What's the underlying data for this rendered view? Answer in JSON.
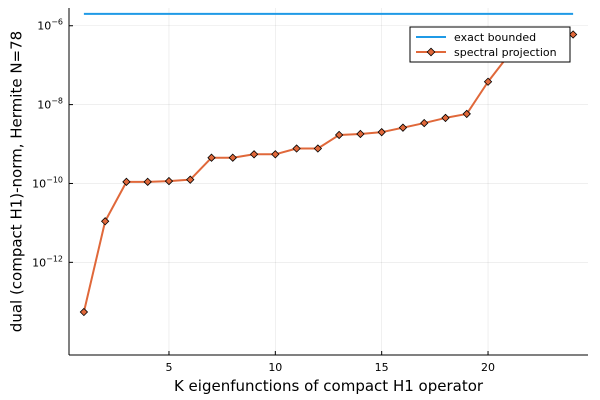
{
  "chart_data": {
    "type": "line",
    "title": "",
    "xlabel": "K eigenfunctions of compact H1 operator",
    "ylabel": "dual (compact H1)-norm, Hermite N=78",
    "xlim": [
      0.3,
      24.7
    ],
    "ylim_log10": [
      -14.35,
      -5.55
    ],
    "yscale": "log",
    "grid": true,
    "legend_position": "top-right",
    "x_ticks": [
      5,
      10,
      15,
      20
    ],
    "y_ticks": [
      {
        "exp": -6,
        "base": "10",
        "sup": "−6"
      },
      {
        "exp": -8,
        "base": "10",
        "sup": "−8"
      },
      {
        "exp": -10,
        "base": "10",
        "sup": "−10"
      },
      {
        "exp": -12,
        "base": "10",
        "sup": "−12"
      }
    ],
    "series": [
      {
        "name": "exact bounded",
        "color": "#1f9ae6",
        "marker": "none",
        "x": [
          1,
          24
        ],
        "y": [
          2e-06,
          2e-06
        ]
      },
      {
        "name": "spectral projection",
        "color": "#e0683a",
        "marker": "diamond",
        "x": [
          1,
          2,
          3,
          4,
          5,
          6,
          7,
          8,
          9,
          10,
          11,
          12,
          13,
          14,
          15,
          16,
          17,
          18,
          19,
          20,
          21,
          22,
          23,
          24
        ],
        "y": [
          5.5e-14,
          1.1e-11,
          1.1e-10,
          1.1e-10,
          1.15e-10,
          1.25e-10,
          4.5e-10,
          4.5e-10,
          5.5e-10,
          5.5e-10,
          7.7e-10,
          7.7e-10,
          1.7e-09,
          1.8e-09,
          2e-09,
          2.6e-09,
          3.4e-09,
          4.6e-09,
          5.8e-09,
          3.8e-08,
          1.9e-07,
          2e-07,
          null,
          6e-07
        ]
      }
    ]
  }
}
